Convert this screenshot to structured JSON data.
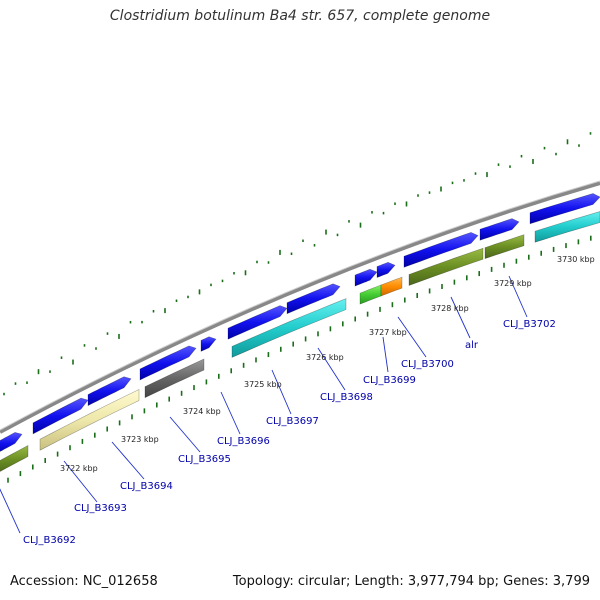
{
  "title": "Clostridium botulinum Ba4 str. 657, complete genome",
  "footer": {
    "accession": "Accession: NC_012658",
    "stats": "Topology: circular; Length: 3,977,794 bp; Genes: 3,799"
  },
  "colors": {
    "forward_cds": "#1111ee",
    "backbone": "#888888",
    "gc_dots": "#227722",
    "gene_label": "#0000aa"
  },
  "position_labels": [
    "3722 kbp",
    "3723 kbp",
    "3724 kbp",
    "3725 kbp",
    "3726 kbp",
    "3727 kbp",
    "3728 kbp",
    "3729 kbp",
    "3730 kbp"
  ],
  "gene_labels": [
    "CLJ_B3692",
    "CLJ_B3693",
    "CLJ_B3694",
    "CLJ_B3695",
    "CLJ_B3696",
    "CLJ_B3697",
    "CLJ_B3698",
    "CLJ_B3699",
    "CLJ_B3700",
    "alr",
    "CLJ_B3702"
  ]
}
